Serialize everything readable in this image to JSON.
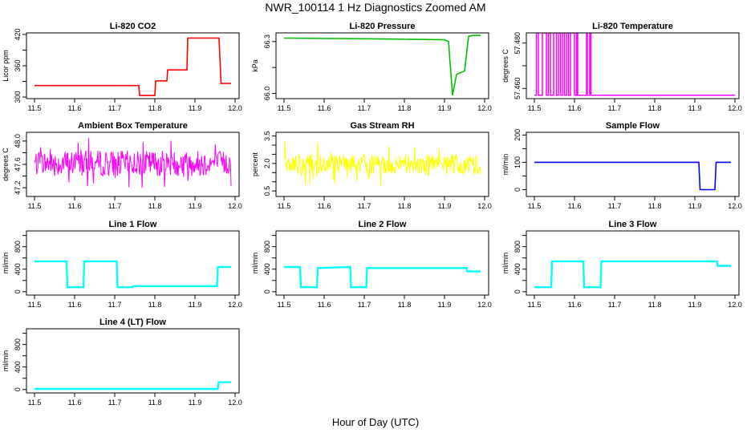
{
  "figure": {
    "title": "NWR_100114  1 Hz Diagnostics Zoomed AM",
    "xlabel": "Hour of Day (UTC)"
  },
  "chart_data": [
    {
      "type": "line",
      "title": "Li-820 CO2",
      "ylabel": "Licor ppm",
      "color": "#ff0000",
      "xlim": [
        11.48,
        12.01
      ],
      "ylim": [
        297,
        423
      ],
      "xticks": [
        11.5,
        11.6,
        11.7,
        11.8,
        11.9,
        12.0
      ],
      "xtick_labels": [
        "11.5",
        "11.6",
        "11.7",
        "11.8",
        "11.9",
        "12.0"
      ],
      "yticks": [
        300,
        360,
        420
      ],
      "ytick_labels": [
        "300",
        "360",
        "420"
      ],
      "minor_yticks": [
        330,
        390
      ],
      "series": [
        {
          "name": "Li-820 CO2",
          "x": [
            11.5,
            11.76,
            11.762,
            11.8,
            11.802,
            11.83,
            11.832,
            11.88,
            11.882,
            11.96,
            11.965,
            11.99
          ],
          "y": [
            322,
            322,
            303,
            303,
            331,
            331,
            352,
            352,
            413,
            413,
            326,
            326
          ]
        }
      ]
    },
    {
      "type": "line",
      "title": "Li-820 Pressure",
      "ylabel": "kPa",
      "color": "#00c000",
      "xlim": [
        11.48,
        12.01
      ],
      "ylim": [
        65.97,
        66.35
      ],
      "xticks": [
        11.5,
        11.6,
        11.7,
        11.8,
        11.9,
        12.0
      ],
      "xtick_labels": [
        "11.5",
        "11.6",
        "11.7",
        "11.8",
        "11.9",
        "12.0"
      ],
      "yticks": [
        66.0,
        66.3
      ],
      "ytick_labels": [
        "66.0",
        "66.3"
      ],
      "minor_yticks": [
        66.15
      ],
      "series": [
        {
          "name": "Li-820 Pressure",
          "x": [
            11.5,
            11.75,
            11.9,
            11.91,
            11.92,
            11.93,
            11.95,
            11.96,
            11.97,
            11.99
          ],
          "y": [
            66.32,
            66.315,
            66.31,
            66.3,
            65.99,
            66.11,
            66.13,
            66.33,
            66.335,
            66.335
          ]
        }
      ]
    },
    {
      "type": "line",
      "title": "Li-820 Temperature",
      "ylabel": "degrees C",
      "color": "#ff00ff",
      "xlim": [
        11.48,
        12.01
      ],
      "ylim": [
        57.4555,
        57.4845
      ],
      "xticks": [
        11.5,
        11.6,
        11.7,
        11.8,
        11.9,
        12.0
      ],
      "xtick_labels": [
        "11.5",
        "11.6",
        "11.7",
        "11.8",
        "11.9",
        "12.0"
      ],
      "yticks": [
        57.46,
        57.48
      ],
      "ytick_labels": [
        "57.460",
        "57.480"
      ],
      "minor_yticks": [
        57.47
      ],
      "base": 57.457,
      "high": 57.4845,
      "toggles": [
        [
          11.505,
          11.51
        ],
        [
          11.52,
          11.53
        ],
        [
          11.535,
          11.54
        ],
        [
          11.548,
          11.555
        ],
        [
          11.56,
          11.565
        ],
        [
          11.57,
          11.575
        ],
        [
          11.58,
          11.585
        ],
        [
          11.59,
          11.6
        ],
        [
          11.605,
          11.608
        ],
        [
          11.63,
          11.632
        ],
        [
          11.638,
          11.641
        ]
      ],
      "series": [
        {
          "name": "Li-820 Temperature",
          "x": [
            11.5,
            12.0
          ],
          "y": [
            57.457,
            57.457
          ]
        }
      ]
    },
    {
      "type": "line",
      "title": "Ambient Box Temperature",
      "ylabel": "degrees C",
      "color": "#ff00ff",
      "xlim": [
        11.48,
        12.01
      ],
      "ylim": [
        47.05,
        48.15
      ],
      "xticks": [
        11.5,
        11.6,
        11.7,
        11.8,
        11.9,
        12.0
      ],
      "xtick_labels": [
        "11.5",
        "11.6",
        "11.7",
        "11.8",
        "11.9",
        "12.0"
      ],
      "yticks": [
        47.2,
        47.6,
        48.0
      ],
      "ytick_labels": [
        "47.2",
        "47.6",
        "48.0"
      ],
      "minor_yticks": [
        47.4,
        47.8
      ],
      "noise": {
        "center": 47.62,
        "amp": 0.22,
        "spike": 0.45,
        "from": 11.5,
        "to": 11.99,
        "seed": 7
      },
      "series": [
        {
          "name": "Ambient Box Temperature",
          "x": [
            11.5,
            11.99
          ],
          "y": [
            47.62,
            47.62
          ]
        }
      ]
    },
    {
      "type": "line",
      "title": "Gas Stream RH",
      "ylabel": "percent",
      "color": "#ffff00",
      "xlim": [
        11.48,
        12.01
      ],
      "ylim": [
        0.2,
        3.7
      ],
      "xticks": [
        11.5,
        11.6,
        11.7,
        11.8,
        11.9,
        12.0
      ],
      "xtick_labels": [
        "11.5",
        "11.6",
        "11.7",
        "11.8",
        "11.9",
        "12.0"
      ],
      "yticks": [
        0.5,
        2.0,
        3.5
      ],
      "ytick_labels": [
        "0.5",
        "2.0",
        "3.5"
      ],
      "minor_yticks": [
        1.0,
        1.5,
        2.5,
        3.0
      ],
      "noise": {
        "center": 1.95,
        "amp": 0.55,
        "spike": 1.4,
        "from": 11.5,
        "to": 11.99,
        "seed": 19
      },
      "series": [
        {
          "name": "Gas Stream RH",
          "x": [
            11.5,
            11.99
          ],
          "y": [
            1.95,
            1.95
          ]
        }
      ]
    },
    {
      "type": "line",
      "title": "Sample Flow",
      "ylabel": "ml/min",
      "color": "#0000ff",
      "xlim": [
        11.48,
        12.01
      ],
      "ylim": [
        -25,
        210
      ],
      "xticks": [
        11.5,
        11.6,
        11.7,
        11.8,
        11.9,
        12.0
      ],
      "xtick_labels": [
        "11.5",
        "11.6",
        "11.7",
        "11.8",
        "11.9",
        "12.0"
      ],
      "yticks": [
        0,
        100,
        200
      ],
      "ytick_labels": [
        "0",
        "100",
        "200"
      ],
      "minor_yticks": [
        50,
        150
      ],
      "series": [
        {
          "name": "Sample Flow",
          "x": [
            11.5,
            11.91,
            11.913,
            11.95,
            11.953,
            11.99
          ],
          "y": [
            100,
            100,
            0,
            0,
            100,
            100
          ]
        }
      ]
    },
    {
      "type": "line",
      "title": "Line 1 Flow",
      "ylabel": "ml/min",
      "color": "#00ffff",
      "xlim": [
        11.48,
        12.01
      ],
      "ylim": [
        -60,
        1080
      ],
      "xticks": [
        11.5,
        11.6,
        11.7,
        11.8,
        11.9,
        12.0
      ],
      "xtick_labels": [
        "11.5",
        "11.6",
        "11.7",
        "11.8",
        "11.9",
        "12.0"
      ],
      "yticks": [
        0,
        400,
        800
      ],
      "ytick_labels": [
        "0",
        "400",
        "800"
      ],
      "minor_yticks": [
        200,
        600,
        1000
      ],
      "series": [
        {
          "name": "Line 1 Flow",
          "x": [
            11.5,
            11.58,
            11.582,
            11.622,
            11.624,
            11.705,
            11.707,
            11.745,
            11.747,
            11.955,
            11.957,
            11.99
          ],
          "y": [
            540,
            540,
            80,
            80,
            540,
            540,
            80,
            80,
            100,
            100,
            440,
            440
          ]
        }
      ]
    },
    {
      "type": "line",
      "title": "Line 2 Flow",
      "ylabel": "ml/min",
      "color": "#00ffff",
      "xlim": [
        11.48,
        12.01
      ],
      "ylim": [
        -60,
        1080
      ],
      "xticks": [
        11.5,
        11.6,
        11.7,
        11.8,
        11.9,
        12.0
      ],
      "xtick_labels": [
        "11.5",
        "11.6",
        "11.7",
        "11.8",
        "11.9",
        "12.0"
      ],
      "yticks": [
        0,
        400,
        800
      ],
      "ytick_labels": [
        "0",
        "400",
        "800"
      ],
      "minor_yticks": [
        200,
        600,
        1000
      ],
      "series": [
        {
          "name": "Line 2 Flow",
          "x": [
            11.5,
            11.54,
            11.542,
            11.582,
            11.584,
            11.665,
            11.667,
            11.705,
            11.707,
            11.955,
            11.957,
            11.99
          ],
          "y": [
            440,
            440,
            80,
            80,
            420,
            440,
            80,
            80,
            420,
            420,
            360,
            360
          ]
        }
      ]
    },
    {
      "type": "line",
      "title": "Line 3 Flow",
      "ylabel": "ml/min",
      "color": "#00ffff",
      "xlim": [
        11.48,
        12.01
      ],
      "ylim": [
        -60,
        1080
      ],
      "xticks": [
        11.5,
        11.6,
        11.7,
        11.8,
        11.9,
        12.0
      ],
      "xtick_labels": [
        "11.5",
        "11.6",
        "11.7",
        "11.8",
        "11.9",
        "12.0"
      ],
      "yticks": [
        0,
        400,
        800
      ],
      "ytick_labels": [
        "0",
        "400",
        "800"
      ],
      "minor_yticks": [
        200,
        600,
        1000
      ],
      "series": [
        {
          "name": "Line 3 Flow",
          "x": [
            11.5,
            11.542,
            11.544,
            11.622,
            11.624,
            11.665,
            11.667,
            11.955,
            11.957,
            11.99
          ],
          "y": [
            80,
            80,
            540,
            540,
            80,
            80,
            540,
            540,
            460,
            460
          ]
        }
      ]
    },
    {
      "type": "line",
      "title": "Line 4 (LT) Flow",
      "ylabel": "ml/min",
      "color": "#00ffff",
      "xlim": [
        11.48,
        12.01
      ],
      "ylim": [
        -60,
        1080
      ],
      "xticks": [
        11.5,
        11.6,
        11.7,
        11.8,
        11.9,
        12.0
      ],
      "xtick_labels": [
        "11.5",
        "11.6",
        "11.7",
        "11.8",
        "11.9",
        "12.0"
      ],
      "yticks": [
        0,
        400,
        800
      ],
      "ytick_labels": [
        "0",
        "400",
        "800"
      ],
      "minor_yticks": [
        200,
        600,
        1000
      ],
      "series": [
        {
          "name": "Line 4 (LT) Flow",
          "x": [
            11.5,
            11.957,
            11.959,
            11.99
          ],
          "y": [
            10,
            10,
            130,
            130
          ]
        }
      ]
    }
  ]
}
